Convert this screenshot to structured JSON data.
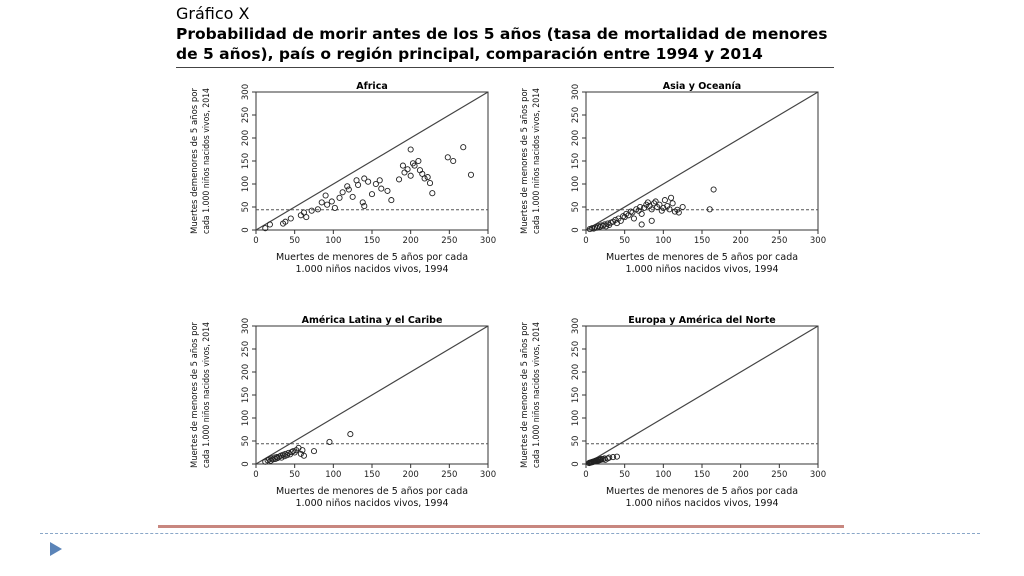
{
  "title": {
    "label": "Gráfico X",
    "line1": "Probabilidad de morir antes de los 5 años (tasa de mortalidad de menores",
    "line2": "de 5 años), país o región principal, comparación entre 1994 y 2014"
  },
  "chart_data": [
    {
      "type": "scatter",
      "title": "Africa",
      "xlabel": [
        "Muertes de menores de 5 años por cada",
        "1.000 niños nacidos vivos, 1994"
      ],
      "ylabel": [
        "Muertes demenores de 5 años por",
        "cada 1.000 niños nacidos vivos, 2014"
      ],
      "xlim": [
        0,
        300
      ],
      "ylim": [
        0,
        300
      ],
      "xticks": [
        0,
        50,
        100,
        150,
        200,
        250,
        300
      ],
      "yticks": [
        0,
        50,
        100,
        150,
        200,
        250,
        300
      ],
      "reference_lines": {
        "diagonal": "y = x",
        "dashed_h": 44
      },
      "points": [
        [
          12,
          4
        ],
        [
          18,
          12
        ],
        [
          35,
          14
        ],
        [
          38,
          18
        ],
        [
          45,
          25
        ],
        [
          58,
          32
        ],
        [
          62,
          38
        ],
        [
          65,
          28
        ],
        [
          72,
          42
        ],
        [
          80,
          45
        ],
        [
          85,
          60
        ],
        [
          90,
          75
        ],
        [
          92,
          55
        ],
        [
          98,
          62
        ],
        [
          102,
          48
        ],
        [
          108,
          70
        ],
        [
          112,
          82
        ],
        [
          118,
          95
        ],
        [
          120,
          88
        ],
        [
          125,
          72
        ],
        [
          130,
          108
        ],
        [
          132,
          98
        ],
        [
          138,
          60
        ],
        [
          140,
          112
        ],
        [
          145,
          105
        ],
        [
          150,
          78
        ],
        [
          155,
          100
        ],
        [
          160,
          108
        ],
        [
          162,
          90
        ],
        [
          170,
          85
        ],
        [
          175,
          65
        ],
        [
          185,
          110
        ],
        [
          190,
          140
        ],
        [
          192,
          125
        ],
        [
          196,
          132
        ],
        [
          200,
          118
        ],
        [
          203,
          145
        ],
        [
          205,
          140
        ],
        [
          210,
          150
        ],
        [
          212,
          130
        ],
        [
          215,
          122
        ],
        [
          218,
          112
        ],
        [
          222,
          115
        ],
        [
          225,
          102
        ],
        [
          228,
          80
        ],
        [
          248,
          158
        ],
        [
          255,
          150
        ],
        [
          268,
          180
        ],
        [
          278,
          120
        ],
        [
          140,
          52
        ],
        [
          200,
          175
        ]
      ]
    },
    {
      "type": "scatter",
      "title": "Asia y Oceanía",
      "xlabel": [
        "Muertes de menores de 5 años por cada",
        "1.000 niños nacidos vivos, 1994"
      ],
      "ylabel": [
        "Muertes de menores de 5 años por",
        "cada 1.000 niños nacidos vivos, 2014"
      ],
      "xlim": [
        0,
        300
      ],
      "ylim": [
        0,
        300
      ],
      "xticks": [
        0,
        50,
        100,
        150,
        200,
        250,
        300
      ],
      "yticks": [
        0,
        50,
        100,
        150,
        200,
        250,
        300
      ],
      "reference_lines": {
        "diagonal": "y = x",
        "dashed_h": 44
      },
      "points": [
        [
          5,
          2
        ],
        [
          8,
          4
        ],
        [
          10,
          3
        ],
        [
          12,
          6
        ],
        [
          14,
          5
        ],
        [
          16,
          8
        ],
        [
          18,
          7
        ],
        [
          20,
          10
        ],
        [
          22,
          9
        ],
        [
          24,
          12
        ],
        [
          26,
          8
        ],
        [
          28,
          14
        ],
        [
          30,
          11
        ],
        [
          32,
          16
        ],
        [
          35,
          18
        ],
        [
          38,
          22
        ],
        [
          40,
          15
        ],
        [
          42,
          25
        ],
        [
          45,
          20
        ],
        [
          48,
          30
        ],
        [
          50,
          28
        ],
        [
          52,
          35
        ],
        [
          55,
          32
        ],
        [
          58,
          40
        ],
        [
          60,
          38
        ],
        [
          62,
          25
        ],
        [
          65,
          45
        ],
        [
          68,
          42
        ],
        [
          70,
          50
        ],
        [
          72,
          35
        ],
        [
          75,
          48
        ],
        [
          78,
          55
        ],
        [
          80,
          60
        ],
        [
          82,
          52
        ],
        [
          85,
          45
        ],
        [
          88,
          58
        ],
        [
          90,
          62
        ],
        [
          92,
          50
        ],
        [
          95,
          55
        ],
        [
          98,
          42
        ],
        [
          100,
          48
        ],
        [
          102,
          65
        ],
        [
          105,
          52
        ],
        [
          108,
          45
        ],
        [
          110,
          70
        ],
        [
          112,
          58
        ],
        [
          115,
          40
        ],
        [
          118,
          44
        ],
        [
          120,
          38
        ],
        [
          125,
          50
        ],
        [
          160,
          45
        ],
        [
          165,
          88
        ],
        [
          72,
          12
        ],
        [
          85,
          20
        ]
      ]
    },
    {
      "type": "scatter",
      "title": "América Latina y el Caribe",
      "xlabel": [
        "Muertes de menores de 5 años por cada",
        "1.000 niños nacidos vivos, 1994"
      ],
      "ylabel": [
        "Muertes de menores de 5 años por",
        "cada 1.000 niños nacidos vivos, 2014"
      ],
      "xlim": [
        0,
        300
      ],
      "ylim": [
        0,
        300
      ],
      "xticks": [
        0,
        50,
        100,
        150,
        200,
        250,
        300
      ],
      "yticks": [
        0,
        50,
        100,
        150,
        200,
        250,
        300
      ],
      "reference_lines": {
        "diagonal": "y = x",
        "dashed_h": 44
      },
      "points": [
        [
          12,
          5
        ],
        [
          15,
          8
        ],
        [
          17,
          10
        ],
        [
          19,
          7
        ],
        [
          20,
          12
        ],
        [
          22,
          10
        ],
        [
          24,
          14
        ],
        [
          25,
          11
        ],
        [
          27,
          15
        ],
        [
          28,
          13
        ],
        [
          30,
          16
        ],
        [
          32,
          18
        ],
        [
          33,
          14
        ],
        [
          35,
          20
        ],
        [
          37,
          17
        ],
        [
          38,
          22
        ],
        [
          40,
          19
        ],
        [
          42,
          24
        ],
        [
          44,
          21
        ],
        [
          46,
          26
        ],
        [
          48,
          28
        ],
        [
          50,
          25
        ],
        [
          52,
          30
        ],
        [
          55,
          35
        ],
        [
          58,
          22
        ],
        [
          60,
          30
        ],
        [
          62,
          18
        ],
        [
          75,
          28
        ],
        [
          95,
          48
        ],
        [
          122,
          65
        ]
      ]
    },
    {
      "type": "scatter",
      "title": "Europa y América del Norte",
      "xlabel": [
        "Muertes de menores de 5 años por cada",
        "1.000 niños nacidos vivos, 1994"
      ],
      "ylabel": [
        "Muertes de menores de 5 años por",
        "cada 1.000 niños nacidos vivos, 2014"
      ],
      "xlim": [
        0,
        300
      ],
      "ylim": [
        0,
        300
      ],
      "xticks": [
        0,
        50,
        100,
        150,
        200,
        250,
        300
      ],
      "yticks": [
        0,
        50,
        100,
        150,
        200,
        250,
        300
      ],
      "reference_lines": {
        "diagonal": "y = x",
        "dashed_h": 44
      },
      "points": [
        [
          4,
          2
        ],
        [
          5,
          3
        ],
        [
          6,
          3
        ],
        [
          7,
          4
        ],
        [
          8,
          4
        ],
        [
          9,
          5
        ],
        [
          10,
          5
        ],
        [
          11,
          6
        ],
        [
          12,
          7
        ],
        [
          13,
          6
        ],
        [
          14,
          8
        ],
        [
          15,
          7
        ],
        [
          16,
          9
        ],
        [
          17,
          8
        ],
        [
          18,
          10
        ],
        [
          19,
          9
        ],
        [
          20,
          11
        ],
        [
          22,
          10
        ],
        [
          24,
          12
        ],
        [
          25,
          9
        ],
        [
          28,
          12
        ],
        [
          30,
          14
        ],
        [
          35,
          15
        ],
        [
          40,
          16
        ]
      ]
    }
  ]
}
